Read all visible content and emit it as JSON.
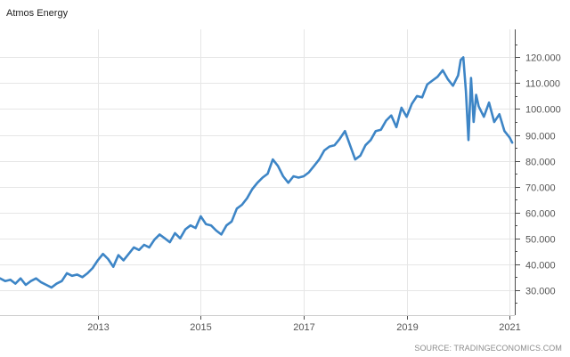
{
  "chart_data": {
    "type": "line",
    "title": "Atmos Energy",
    "source": "SOURCE: TRADINGECONOMICS.COM",
    "xlabel": "",
    "ylabel": "",
    "x_ticks": [
      "2013",
      "2015",
      "2017",
      "2019",
      "2021"
    ],
    "x_tick_values": [
      2013,
      2015,
      2017,
      2019,
      2021
    ],
    "y_ticks": [
      "30.000",
      "40.000",
      "50.000",
      "60.000",
      "70.000",
      "80.000",
      "90.000",
      "100.000",
      "110.000",
      "120.000"
    ],
    "y_tick_values": [
      30,
      40,
      50,
      60,
      70,
      80,
      90,
      100,
      110,
      120
    ],
    "xlim": [
      2011.1,
      2021.1
    ],
    "ylim": [
      20.3,
      130.8
    ],
    "grid": true,
    "axis_side": "right",
    "series": [
      {
        "color": "#3d85c6",
        "x": [
          2011.1,
          2011.2,
          2011.3,
          2011.4,
          2011.5,
          2011.6,
          2011.7,
          2011.8,
          2011.9,
          2012.0,
          2012.1,
          2012.2,
          2012.3,
          2012.4,
          2012.5,
          2012.6,
          2012.7,
          2012.8,
          2012.9,
          2013.0,
          2013.1,
          2013.2,
          2013.3,
          2013.4,
          2013.5,
          2013.6,
          2013.7,
          2013.8,
          2013.9,
          2014.0,
          2014.1,
          2014.2,
          2014.3,
          2014.4,
          2014.5,
          2014.6,
          2014.7,
          2014.8,
          2014.9,
          2015.0,
          2015.1,
          2015.2,
          2015.3,
          2015.4,
          2015.5,
          2015.6,
          2015.7,
          2015.8,
          2015.9,
          2016.0,
          2016.1,
          2016.2,
          2016.3,
          2016.4,
          2016.5,
          2016.6,
          2016.7,
          2016.8,
          2016.9,
          2017.0,
          2017.1,
          2017.2,
          2017.3,
          2017.4,
          2017.5,
          2017.6,
          2017.7,
          2017.8,
          2017.9,
          2018.0,
          2018.1,
          2018.2,
          2018.3,
          2018.4,
          2018.5,
          2018.6,
          2018.7,
          2018.8,
          2018.9,
          2019.0,
          2019.1,
          2019.2,
          2019.3,
          2019.4,
          2019.5,
          2019.6,
          2019.7,
          2019.8,
          2019.9,
          2020.0,
          2020.05,
          2020.1,
          2020.15,
          2020.2,
          2020.25,
          2020.3,
          2020.35,
          2020.4,
          2020.5,
          2020.6,
          2020.7,
          2020.8,
          2020.9,
          2021.0,
          2021.05
        ],
        "y": [
          34.5,
          33.5,
          34.0,
          32.5,
          34.5,
          32.0,
          33.5,
          34.5,
          33.0,
          32.0,
          31.0,
          32.5,
          33.5,
          36.5,
          35.5,
          36.0,
          35.0,
          36.5,
          38.5,
          41.5,
          44.0,
          42.0,
          39.0,
          43.5,
          41.5,
          44.0,
          46.5,
          45.5,
          47.5,
          46.5,
          49.5,
          51.5,
          50.0,
          48.5,
          52.0,
          50.0,
          53.5,
          55.0,
          54.0,
          58.5,
          55.5,
          55.0,
          53.0,
          51.5,
          55.0,
          56.5,
          61.5,
          63.0,
          65.5,
          69.0,
          71.5,
          73.5,
          75.0,
          80.5,
          78.0,
          74.0,
          71.5,
          74.0,
          73.5,
          74.0,
          75.5,
          78.0,
          80.5,
          84.0,
          85.5,
          86.0,
          88.5,
          91.5,
          86.0,
          80.5,
          82.0,
          86.0,
          88.0,
          91.5,
          92.0,
          95.5,
          97.5,
          93.0,
          100.5,
          97.0,
          102.0,
          105.0,
          104.5,
          109.5,
          111.0,
          112.5,
          115.0,
          111.5,
          109.0,
          113.0,
          119.0,
          120.0,
          107.0,
          88.0,
          112.0,
          95.0,
          105.5,
          101.0,
          97.0,
          102.5,
          95.0,
          98.0,
          91.5,
          89.0,
          87.0
        ]
      }
    ]
  }
}
